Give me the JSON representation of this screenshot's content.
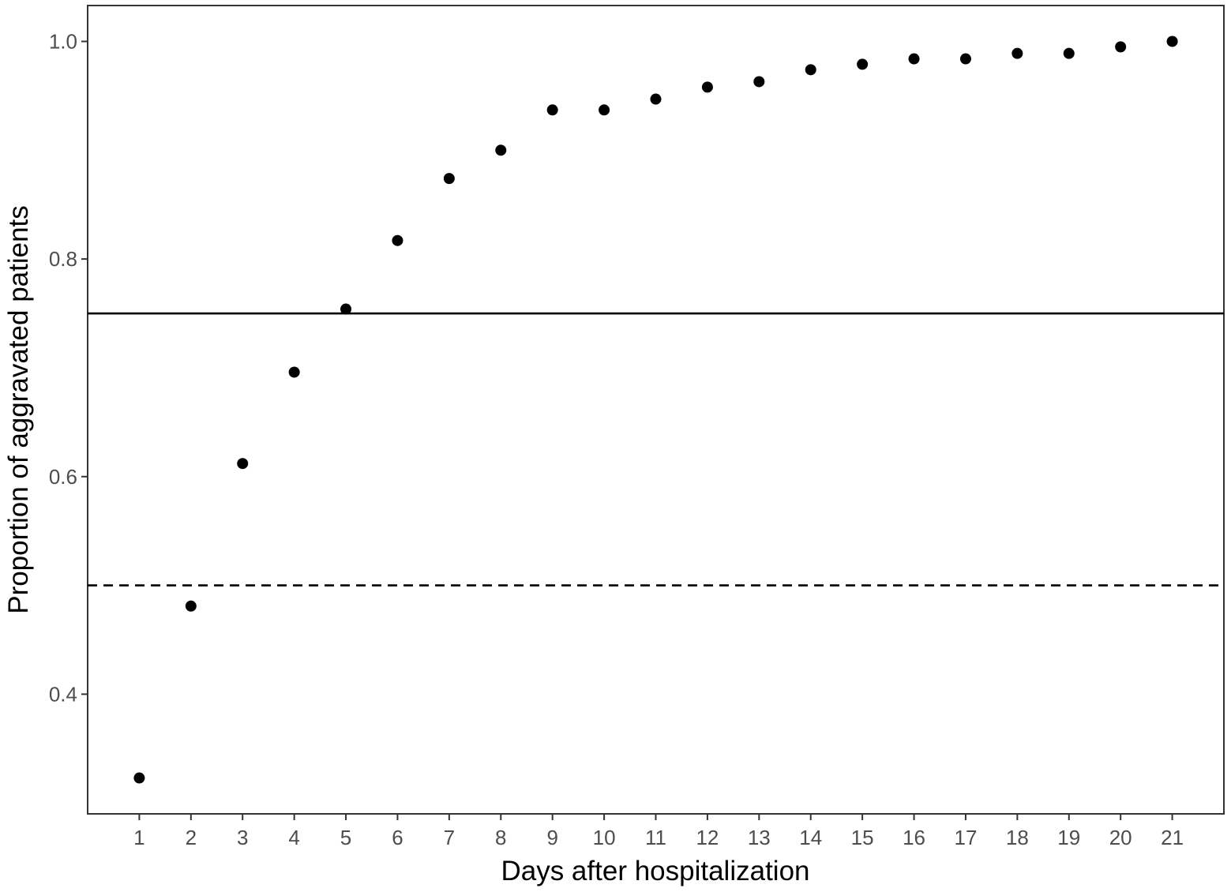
{
  "chart_data": {
    "type": "scatter",
    "title": "",
    "xlabel": "Days after hospitalization",
    "ylabel": "Proportion of aggravated patients",
    "x": [
      1,
      2,
      3,
      4,
      5,
      6,
      7,
      8,
      9,
      10,
      11,
      12,
      13,
      14,
      15,
      16,
      17,
      18,
      19,
      20,
      21
    ],
    "y": [
      0.323,
      0.481,
      0.612,
      0.696,
      0.754,
      0.817,
      0.874,
      0.9,
      0.937,
      0.937,
      0.947,
      0.958,
      0.963,
      0.974,
      0.979,
      0.984,
      0.984,
      0.989,
      0.989,
      0.995,
      1.0
    ],
    "xlim": [
      0,
      22
    ],
    "ylim": [
      0.29,
      1.033
    ],
    "xticks": [
      1,
      2,
      3,
      4,
      5,
      6,
      7,
      8,
      9,
      10,
      11,
      12,
      13,
      14,
      15,
      16,
      17,
      18,
      19,
      20,
      21
    ],
    "yticks": [
      0.4,
      0.6,
      0.8,
      1.0
    ],
    "ytick_labels": [
      "0.4",
      "0.6",
      "0.8",
      "1.0"
    ],
    "reference_lines": [
      {
        "y": 0.75,
        "style": "solid"
      },
      {
        "y": 0.5,
        "style": "dashed"
      }
    ],
    "grid": false,
    "legend": "none",
    "point_color": "#000000"
  }
}
